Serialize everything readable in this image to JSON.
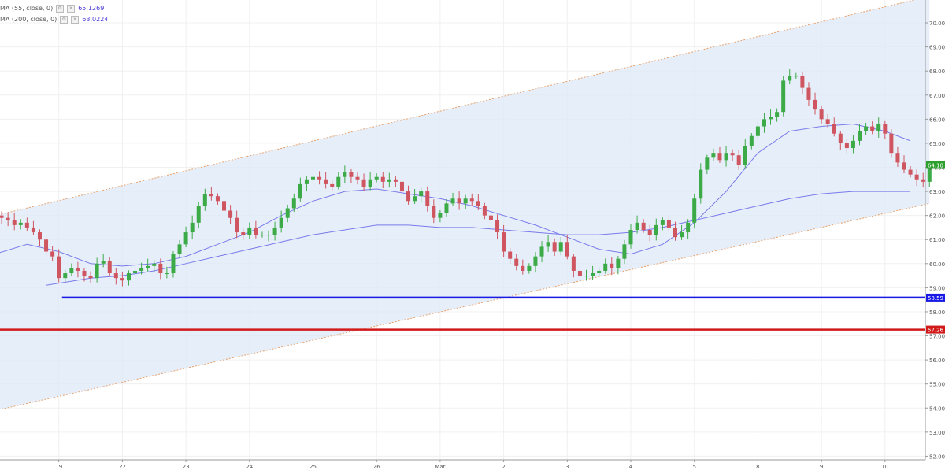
{
  "legend": {
    "ma1_label": "MA (55, close, 0)",
    "ma1_value": "65.1269",
    "ma2_label": "MA (200, close, 0)",
    "ma2_value": "63.0224"
  },
  "chart_data": {
    "type": "candlestick",
    "ylim": [
      51.85,
      70.95
    ],
    "y_ticks": [
      "52.00",
      "53.00",
      "54.00",
      "55.00",
      "56.00",
      "57.00",
      "58.00",
      "59.00",
      "60.00",
      "61.00",
      "62.00",
      "63.00",
      "64.00",
      "65.00",
      "66.00",
      "67.00",
      "68.00",
      "69.00",
      "70.00"
    ],
    "x_ticks": [
      {
        "label": "19",
        "slot": 10
      },
      {
        "label": "22",
        "slot": 20
      },
      {
        "label": "23",
        "slot": 30
      },
      {
        "label": "24",
        "slot": 40
      },
      {
        "label": "25",
        "slot": 50
      },
      {
        "label": "26",
        "slot": 60
      },
      {
        "label": "Mar",
        "slot": 70
      },
      {
        "label": "2",
        "slot": 80
      },
      {
        "label": "3",
        "slot": 90
      },
      {
        "label": "4",
        "slot": 100
      },
      {
        "label": "5",
        "slot": 110
      },
      {
        "label": "8",
        "slot": 120
      },
      {
        "label": "9",
        "slot": 130
      },
      {
        "label": "10",
        "slot": 140
      }
    ],
    "price_labels": [
      {
        "value": 64.1,
        "text": "64.10",
        "color": "#2ca02c",
        "style": "thin"
      },
      {
        "value": 58.59,
        "text": "58.59",
        "color": "#1a1ae6",
        "style": "thick"
      },
      {
        "value": 57.26,
        "text": "57.26",
        "color": "#d11a1a",
        "style": "thick"
      }
    ],
    "channel": {
      "upper": {
        "from": [
          0,
          62.0
        ],
        "to": [
          147,
          71.1
        ]
      },
      "lower": {
        "from": [
          0,
          53.9
        ],
        "to": [
          147,
          62.5
        ]
      },
      "fill": "#dde9f7",
      "edge_color": "#e8a06a"
    },
    "support_line": {
      "value": 58.59,
      "from_slot": 10.5,
      "to_slot": 147,
      "color": "#1a1ae6"
    },
    "resistance_line": {
      "value": 57.26,
      "from_slot": 0,
      "to_slot": 147,
      "color": "#d11a1a"
    },
    "last_price_line": {
      "value": 64.1,
      "color": "#2ca02c"
    },
    "colors": {
      "up": "#3daa48",
      "down": "#cf5560",
      "ma": "#7a7aeb"
    },
    "ma55": [
      [
        0,
        60.4
      ],
      [
        5,
        60.8
      ],
      [
        10,
        60.5
      ],
      [
        15,
        60.0
      ],
      [
        20,
        59.9
      ],
      [
        25,
        60.0
      ],
      [
        30,
        60.3
      ],
      [
        35,
        60.8
      ],
      [
        40,
        61.3
      ],
      [
        45,
        62.0
      ],
      [
        50,
        62.6
      ],
      [
        55,
        63.0
      ],
      [
        60,
        63.1
      ],
      [
        65,
        62.9
      ],
      [
        70,
        62.7
      ],
      [
        75,
        62.4
      ],
      [
        80,
        62.0
      ],
      [
        85,
        61.6
      ],
      [
        90,
        61.1
      ],
      [
        95,
        60.6
      ],
      [
        100,
        60.4
      ],
      [
        105,
        60.8
      ],
      [
        110,
        61.7
      ],
      [
        115,
        63.0
      ],
      [
        120,
        64.6
      ],
      [
        125,
        65.5
      ],
      [
        130,
        65.7
      ],
      [
        135,
        65.8
      ],
      [
        140,
        65.5
      ],
      [
        144,
        65.1
      ]
    ],
    "ma200": [
      [
        8,
        59.1
      ],
      [
        15,
        59.4
      ],
      [
        20,
        59.5
      ],
      [
        25,
        59.7
      ],
      [
        30,
        60.0
      ],
      [
        35,
        60.3
      ],
      [
        40,
        60.6
      ],
      [
        45,
        60.9
      ],
      [
        50,
        61.2
      ],
      [
        55,
        61.4
      ],
      [
        60,
        61.6
      ],
      [
        65,
        61.6
      ],
      [
        70,
        61.5
      ],
      [
        75,
        61.5
      ],
      [
        80,
        61.4
      ],
      [
        85,
        61.3
      ],
      [
        90,
        61.2
      ],
      [
        95,
        61.2
      ],
      [
        100,
        61.3
      ],
      [
        105,
        61.5
      ],
      [
        110,
        61.8
      ],
      [
        115,
        62.1
      ],
      [
        120,
        62.4
      ],
      [
        125,
        62.7
      ],
      [
        130,
        62.9
      ],
      [
        135,
        63.0
      ],
      [
        140,
        63.0
      ],
      [
        144,
        63.0
      ]
    ],
    "closes": [
      62.0,
      61.9,
      61.8,
      61.6,
      61.7,
      61.5,
      61.3,
      61.0,
      60.5,
      60.3,
      59.4,
      59.6,
      59.8,
      59.7,
      59.5,
      59.4,
      60.0,
      60.1,
      59.6,
      59.4,
      59.3,
      59.6,
      59.7,
      59.8,
      59.9,
      60.0,
      59.6,
      59.6,
      60.4,
      60.8,
      61.3,
      61.7,
      62.4,
      62.9,
      62.8,
      62.6,
      62.2,
      61.9,
      61.3,
      61.2,
      61.5,
      61.2,
      61.2,
      61.2,
      61.5,
      61.9,
      62.3,
      62.7,
      63.3,
      63.5,
      63.6,
      63.5,
      63.3,
      63.2,
      63.6,
      63.8,
      63.6,
      63.5,
      63.2,
      63.5,
      63.6,
      63.4,
      63.5,
      63.4,
      63.0,
      62.6,
      62.8,
      63.0,
      62.4,
      61.9,
      62.1,
      62.5,
      62.7,
      62.5,
      62.7,
      62.6,
      62.4,
      62.0,
      61.8,
      61.3,
      60.5,
      60.2,
      59.9,
      59.7,
      59.9,
      60.3,
      60.7,
      60.9,
      60.5,
      60.9,
      60.3,
      59.7,
      59.5,
      59.5,
      59.6,
      59.7,
      60.0,
      59.8,
      60.2,
      60.8,
      61.4,
      61.7,
      61.4,
      61.2,
      61.6,
      61.8,
      61.5,
      61.1,
      61.3,
      61.7,
      62.7,
      63.9,
      64.4,
      64.6,
      64.3,
      64.6,
      64.5,
      64.1,
      64.9,
      65.3,
      65.7,
      66.0,
      66.1,
      66.3,
      67.6,
      67.8,
      67.8,
      67.3,
      66.8,
      66.4,
      66.0,
      65.8,
      65.4,
      65.0,
      64.8,
      65.1,
      65.5,
      65.7,
      65.5,
      65.8,
      65.4,
      64.6,
      64.2,
      63.9,
      63.7,
      63.5,
      63.4,
      64.1
    ]
  }
}
